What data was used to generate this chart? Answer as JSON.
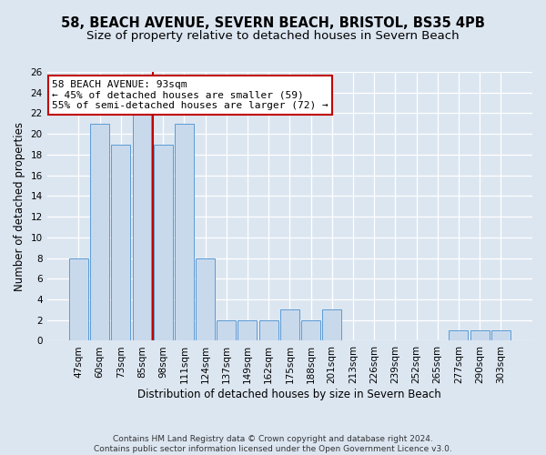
{
  "title": "58, BEACH AVENUE, SEVERN BEACH, BRISTOL, BS35 4PB",
  "subtitle": "Size of property relative to detached houses in Severn Beach",
  "xlabel": "Distribution of detached houses by size in Severn Beach",
  "ylabel": "Number of detached properties",
  "categories": [
    "47sqm",
    "60sqm",
    "73sqm",
    "85sqm",
    "98sqm",
    "111sqm",
    "124sqm",
    "137sqm",
    "149sqm",
    "162sqm",
    "175sqm",
    "188sqm",
    "201sqm",
    "213sqm",
    "226sqm",
    "239sqm",
    "252sqm",
    "265sqm",
    "277sqm",
    "290sqm",
    "303sqm"
  ],
  "values": [
    8,
    21,
    19,
    22,
    19,
    21,
    8,
    2,
    2,
    2,
    3,
    2,
    3,
    0,
    0,
    0,
    0,
    0,
    1,
    1,
    1
  ],
  "bar_color": "#c9d9ec",
  "bar_edge_color": "#5b9bd5",
  "vline_x": 3.5,
  "vline_color": "#c00000",
  "annotation_text": "58 BEACH AVENUE: 93sqm\n← 45% of detached houses are smaller (59)\n55% of semi-detached houses are larger (72) →",
  "annotation_box_color": "#ffffff",
  "annotation_box_edge_color": "#c00000",
  "bg_color": "#dce6f1",
  "plot_bg_color": "#dce6f1",
  "grid_color": "#b8cfe8",
  "ylim": [
    0,
    26
  ],
  "yticks": [
    0,
    2,
    4,
    6,
    8,
    10,
    12,
    14,
    16,
    18,
    20,
    22,
    24,
    26
  ],
  "footer": "Contains HM Land Registry data © Crown copyright and database right 2024.\nContains public sector information licensed under the Open Government Licence v3.0.",
  "title_fontsize": 10.5,
  "subtitle_fontsize": 9.5,
  "xlabel_fontsize": 8.5,
  "ylabel_fontsize": 8.5,
  "tick_fontsize": 7.5,
  "annotation_fontsize": 8.0,
  "footer_fontsize": 6.5
}
